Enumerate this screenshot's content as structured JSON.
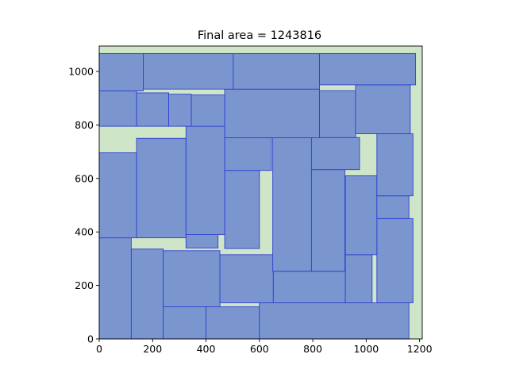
{
  "chart_data": {
    "type": "rectangle-packing",
    "title": "Final area = 1243816",
    "xlabel": "",
    "ylabel": "",
    "xlim": [
      0,
      1210
    ],
    "ylim": [
      0,
      1095
    ],
    "x_ticks": [
      0,
      200,
      400,
      600,
      800,
      1000,
      1200
    ],
    "y_ticks": [
      0,
      200,
      400,
      600,
      800,
      1000
    ],
    "grid": false,
    "colors": {
      "container_fill": "#cfe5c8",
      "rect_fill": "#7b96cf",
      "rect_edge": "#2f3fd0"
    },
    "container": {
      "width": 1210,
      "height": 1095
    },
    "rectangles": [
      {
        "x": 0,
        "y": 0,
        "w": 120,
        "h": 378
      },
      {
        "x": 120,
        "y": 0,
        "w": 120,
        "h": 336
      },
      {
        "x": 240,
        "y": 0,
        "w": 160,
        "h": 120
      },
      {
        "x": 400,
        "y": 0,
        "w": 200,
        "h": 120
      },
      {
        "x": 600,
        "y": 0,
        "w": 560,
        "h": 135
      },
      {
        "x": 240,
        "y": 120,
        "w": 212,
        "h": 210
      },
      {
        "x": 452,
        "y": 135,
        "w": 200,
        "h": 180
      },
      {
        "x": 652,
        "y": 135,
        "w": 270,
        "h": 118
      },
      {
        "x": 922,
        "y": 135,
        "w": 100,
        "h": 180
      },
      {
        "x": 1040,
        "y": 135,
        "w": 135,
        "h": 315
      },
      {
        "x": 0,
        "y": 378,
        "w": 140,
        "h": 318
      },
      {
        "x": 140,
        "y": 378,
        "w": 185,
        "h": 372
      },
      {
        "x": 325,
        "y": 340,
        "w": 120,
        "h": 50
      },
      {
        "x": 325,
        "y": 390,
        "w": 145,
        "h": 405
      },
      {
        "x": 470,
        "y": 338,
        "w": 130,
        "h": 292
      },
      {
        "x": 470,
        "y": 630,
        "w": 175,
        "h": 122
      },
      {
        "x": 650,
        "y": 253,
        "w": 145,
        "h": 500
      },
      {
        "x": 795,
        "y": 253,
        "w": 125,
        "h": 380
      },
      {
        "x": 795,
        "y": 633,
        "w": 180,
        "h": 120
      },
      {
        "x": 922,
        "y": 315,
        "w": 118,
        "h": 295
      },
      {
        "x": 1040,
        "y": 450,
        "w": 120,
        "h": 85
      },
      {
        "x": 1040,
        "y": 535,
        "w": 135,
        "h": 232
      },
      {
        "x": 0,
        "y": 795,
        "w": 140,
        "h": 132
      },
      {
        "x": 140,
        "y": 795,
        "w": 120,
        "h": 125
      },
      {
        "x": 260,
        "y": 795,
        "w": 85,
        "h": 120
      },
      {
        "x": 345,
        "y": 795,
        "w": 125,
        "h": 117
      },
      {
        "x": 470,
        "y": 752,
        "w": 355,
        "h": 182
      },
      {
        "x": 825,
        "y": 753,
        "w": 135,
        "h": 175
      },
      {
        "x": 960,
        "y": 767,
        "w": 205,
        "h": 183
      },
      {
        "x": 0,
        "y": 927,
        "w": 165,
        "h": 140
      },
      {
        "x": 165,
        "y": 934,
        "w": 337,
        "h": 133
      },
      {
        "x": 502,
        "y": 934,
        "w": 323,
        "h": 133
      },
      {
        "x": 825,
        "y": 950,
        "w": 360,
        "h": 117
      }
    ]
  }
}
